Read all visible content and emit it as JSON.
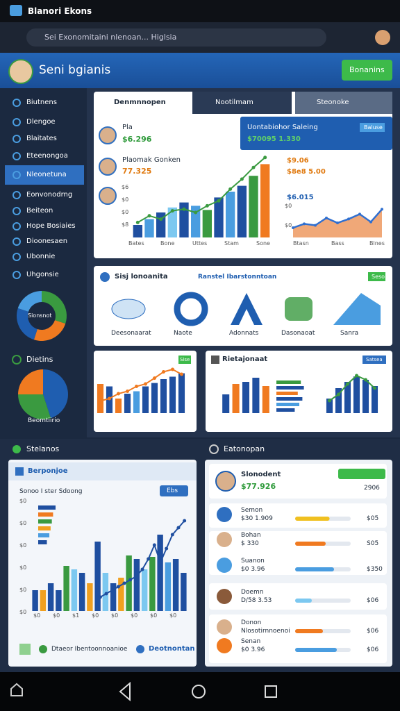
{
  "status_bar": {
    "tab_title": "Blanori Ekons"
  },
  "url_bar": {
    "url": "Sei Exonomitaini nlenoan... Higlsia"
  },
  "header": {
    "title": "Seni bgianis",
    "button": "Bonanins"
  },
  "sidebar": {
    "items": [
      "Biutnens",
      "Dlengoe",
      "Blaitates",
      "Eteenongoa",
      "Nleonetuna",
      "Eonvonodrng",
      "Beiteon",
      "Hope Bosiaies",
      "Dioonesaen",
      "Ubonnie",
      "Uhgonsie"
    ],
    "active_index": 4,
    "donut": {
      "label": "Sionsnot",
      "values": [
        30,
        25,
        25,
        20
      ],
      "colors": [
        "#3a9a40",
        "#f07a20",
        "#1f5eb0",
        "#4a9de0"
      ]
    },
    "section_title": "Dietins",
    "pie": {
      "label": "Beomtiirio",
      "values": [
        45,
        30,
        25
      ],
      "colors": [
        "#1f5eb0",
        "#3a9a40",
        "#f07a20"
      ]
    }
  },
  "overview_card": {
    "tabs": [
      "Denmnnopen",
      "Nootilmam",
      "Steonoke"
    ],
    "people": [
      {
        "name": "Pla",
        "value": "$6.296"
      },
      {
        "name": "Plaomak Gonken",
        "value": "77.325"
      }
    ],
    "bar_chart": {
      "y_labels": [
        "$6",
        "$0",
        "$0",
        "$8"
      ],
      "x_labels": [
        "Bates",
        "Bone",
        "Uttes",
        "Stam",
        "Sone"
      ],
      "ylim": [
        0,
        100
      ],
      "values": [
        15,
        22,
        30,
        36,
        42,
        38,
        33,
        48,
        55,
        62,
        74,
        88
      ],
      "colors": [
        "#1f4fa0",
        "#4a9de0",
        "#1f4fa0",
        "#7cc8f0",
        "#1f4fa0",
        "#4a9de0",
        "#3a9a40",
        "#1f4fa0",
        "#4a9de0",
        "#1f4fa0",
        "#3a9a40",
        "#f07a20"
      ],
      "line": [
        18,
        26,
        22,
        32,
        34,
        30,
        38,
        44,
        58,
        70,
        84,
        96
      ],
      "line_color": "#3a9a40"
    },
    "banner": {
      "title": "Uontabiohor Saleing",
      "badge": "Baluse",
      "value": "$70095 1.330"
    },
    "stats": [
      "$9.06",
      "$8e8 5.00",
      "$6.015"
    ],
    "area_chart": {
      "y_labels": [
        "$0",
        "$0"
      ],
      "x_labels": [
        "Btasn",
        "Bass",
        "Blnes"
      ],
      "ylim": [
        0,
        100
      ],
      "values": [
        20,
        28,
        25,
        40,
        30,
        38,
        48,
        32,
        58
      ],
      "color": "#2f6fd0",
      "fill": "#f0a878"
    }
  },
  "tools_card": {
    "title": "Sisj lonoanita",
    "link": "Ranstel Ibarstonntoan",
    "badge": "Seso",
    "items": [
      "Deesonaarat",
      "Naote",
      "Adonnats",
      "Dasonaoat",
      "Sanra"
    ]
  },
  "small_chart_left": {
    "badge": "Sise",
    "ylim": [
      0,
      100
    ],
    "values": [
      60,
      55,
      30,
      40,
      45,
      55,
      62,
      70,
      75,
      82
    ],
    "colors": [
      "#f07a20",
      "#1f4fa0",
      "#f07a20",
      "#1f4fa0",
      "#4a9de0",
      "#1f4fa0",
      "#1f4fa0",
      "#1f4fa0",
      "#1f4fa0",
      "#1f4fa0"
    ],
    "line": [
      25,
      30,
      40,
      45,
      55,
      60,
      72,
      85,
      90,
      80
    ],
    "line_color": "#f07a20"
  },
  "small_chart_right": {
    "title": "Rietajonaat",
    "badge": "Satsea",
    "ylim": [
      0,
      100
    ],
    "values": [
      45,
      70,
      75,
      85,
      65
    ],
    "colors": [
      "#1f4fa0",
      "#f07a20",
      "#1f4fa0",
      "#1f4fa0",
      "#f07a20"
    ],
    "hbars": [
      80,
      90,
      70,
      85,
      75,
      60
    ],
    "hbar_colors": [
      "#3a9a40",
      "#1f4fa0",
      "#f07a20",
      "#1f4fa0",
      "#4a9de0",
      "#1f4fa0"
    ],
    "values2": [
      35,
      60,
      75,
      88,
      80,
      65
    ],
    "line": [
      30,
      45,
      70,
      90,
      80,
      60
    ],
    "line_color": "#3a9a40"
  },
  "stats_panel": {
    "section_title": "Stelanos",
    "title": "Berponjoe",
    "subtitle": "Sonoo I ster Sdoong",
    "button": "Ebs",
    "chart": {
      "y_labels": [
        "$0",
        "$0",
        "$0",
        "$0",
        "$0",
        "$0"
      ],
      "x_labels": [
        "$0",
        "$0",
        "$1",
        "$0",
        "$0",
        "$0",
        "$0",
        "$0"
      ],
      "ylim": [
        0,
        140
      ],
      "values": [
        30,
        30,
        40,
        30,
        65,
        60,
        55,
        40,
        100,
        55,
        40,
        48,
        80,
        75,
        60,
        78,
        110,
        70,
        75,
        55
      ],
      "colors": [
        "#1f4fa0",
        "#f0a020",
        "#1f4fa0",
        "#1f4fa0",
        "#3a9a40",
        "#7cc8f0",
        "#1f4fa0",
        "#f0a020",
        "#1f4fa0",
        "#7cc8f0",
        "#1f4fa0",
        "#f0a020",
        "#3a9a40",
        "#1f4fa0",
        "#7cc8f0",
        "#3a9a40",
        "#1f4fa0",
        "#4a9de0",
        "#1f4fa0",
        "#1f4fa0"
      ],
      "line": [
        20,
        25,
        30,
        35,
        40,
        45,
        50,
        60,
        75,
        95,
        70,
        90,
        110,
        120,
        130
      ],
      "line_color": "#1f4fa0",
      "hbars": [
        70,
        60,
        55,
        50,
        45,
        35
      ],
      "hbar_colors": [
        "#1f4fa0",
        "#f07a20",
        "#3a9a40",
        "#f0a020",
        "#4a9de0",
        "#1f4fa0"
      ]
    },
    "footer_left": "Dtaeor Ibentoonnoanioe",
    "footer_right": "Deotnontan"
  },
  "list_panel": {
    "section_title": "Eatonopan",
    "top": {
      "name": "Slonodent",
      "value": "$77.926",
      "side": "2906"
    },
    "progress_lim": [
      0,
      100
    ],
    "rows": [
      {
        "title": "Semon",
        "sub": "$30 1.909",
        "progress": 62,
        "color": "#f0c020",
        "value": "$05"
      },
      {
        "title": "Bohan",
        "sub": "$ 330",
        "progress": 55,
        "color": "#f07a20",
        "value": "S05"
      },
      {
        "title": "Suanon",
        "sub": "$0 3.96",
        "progress": 70,
        "color": "#4a9de0",
        "value": "$350"
      },
      {
        "title": "Doemn",
        "sub": "D/58 3.53",
        "progress": 30,
        "color": "#7cc8f0",
        "value": "$06"
      },
      {
        "title": "Donon",
        "sub": "Nlosotirnnoenoi",
        "progress": 50,
        "color": "#f07a20",
        "value": "$06"
      },
      {
        "title": "Senan",
        "sub": "$0 3.96",
        "progress": 75,
        "color": "#4a9de0",
        "value": "$06"
      }
    ]
  }
}
